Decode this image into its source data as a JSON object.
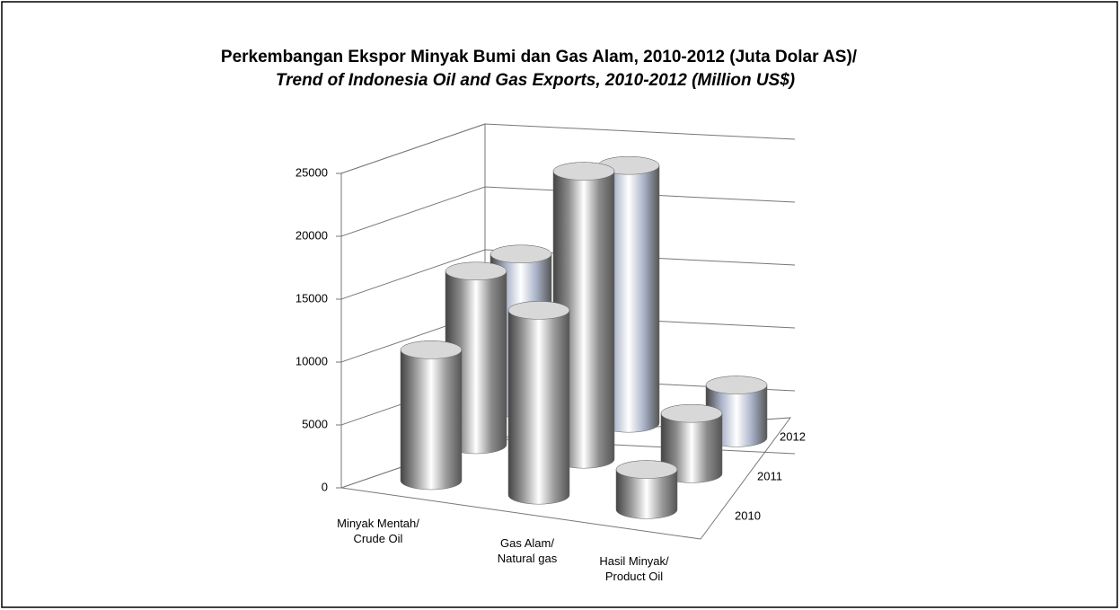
{
  "chart_data": {
    "type": "bar3d",
    "title": "Perkembangan Ekspor Minyak Bumi dan Gas Alam, 2010-2012 (Juta Dolar AS)/",
    "subtitle": "Trend of Indonesia Oil and Gas Exports, 2010-2012 (Million US$)",
    "categories": [
      "Minyak Mentah/ Crude Oil",
      "Gas Alam/ Natural gas",
      "Hasil Minyak/ Product Oil"
    ],
    "series": [
      {
        "name": "2010",
        "color": "#9a9a9a",
        "values": [
          10400,
          14700,
          3200
        ]
      },
      {
        "name": "2011",
        "color": "#8c8c8c",
        "values": [
          13800,
          22900,
          4800
        ]
      },
      {
        "name": "2012",
        "color": "#a9b2c8",
        "values": [
          12300,
          20500,
          4200
        ]
      }
    ],
    "ylim": [
      0,
      25000
    ],
    "yticks": [
      0,
      5000,
      10000,
      15000,
      20000,
      25000
    ],
    "grid": true
  }
}
